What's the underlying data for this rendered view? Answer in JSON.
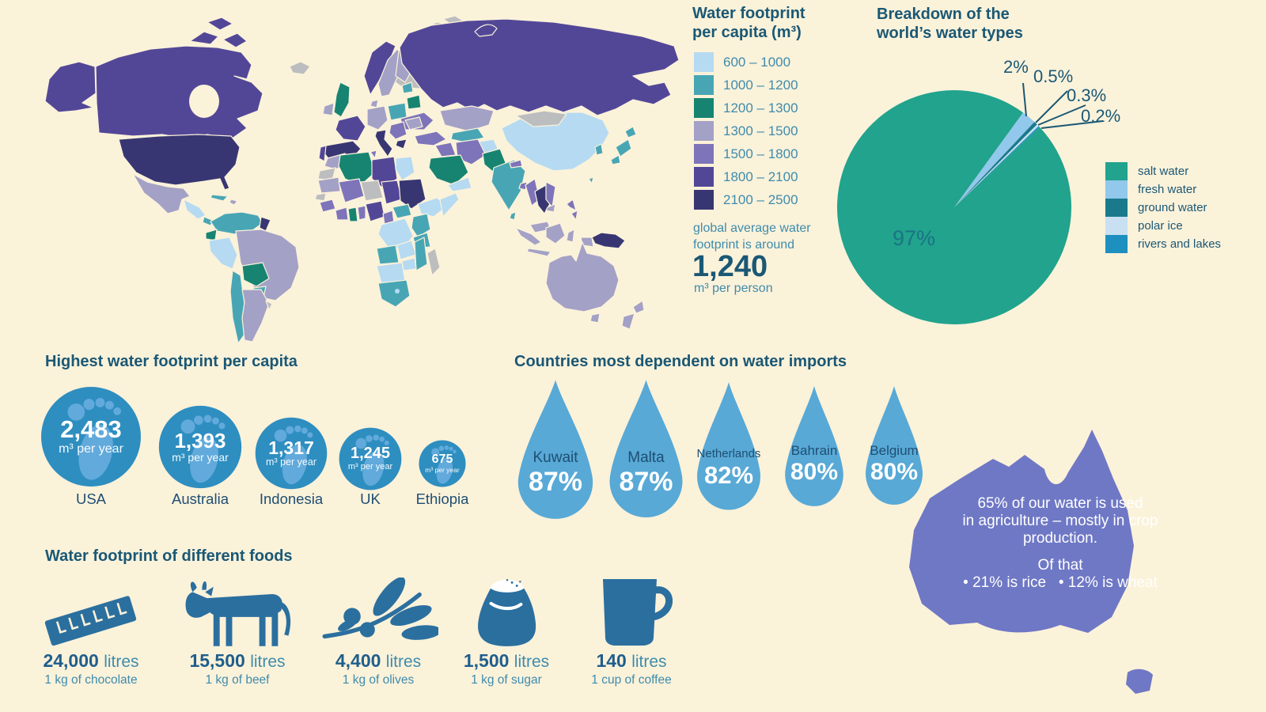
{
  "palette": {
    "background": "#FBF2DA",
    "heading": "#1A5875",
    "teal_label": "#3E8CAD",
    "navy_label": "#1F4E73",
    "band_600_1000": "#B5DAF2",
    "band_1000_1200": "#48A6B4",
    "band_1200_1300": "#178471",
    "band_1300_1500": "#A3A1C6",
    "band_1500_1800": "#7D74BA",
    "band_1800_2100": "#524797",
    "band_2100_2500": "#383672",
    "no_data_gray": "#BCBDBE",
    "pie_salt": "#21A38D",
    "pie_fresh": "#92C8EC",
    "pie_ground": "#1A7A8C",
    "pie_polar": "#C9E0F2",
    "pie_rivers": "#1D90C0",
    "pie_97_label": "#1B7384",
    "circle_blue": "#2E8EC0",
    "footprint_light": "#62AADC",
    "drop_blue": "#58A9D6",
    "food_blue": "#2B6F9F",
    "food_number": "#1F5E8C",
    "australia_purple": "#6F78C5",
    "white": "#FFFFFF"
  },
  "map_legend": {
    "title_line1": "Water footprint",
    "title_line2": "per capita (m³)",
    "bands": [
      {
        "range": "600 – 1000"
      },
      {
        "range": "1000 – 1200"
      },
      {
        "range": "1200 – 1300"
      },
      {
        "range": "1300 – 1500"
      },
      {
        "range": "1500 – 1800"
      },
      {
        "range": "1800 – 2100"
      },
      {
        "range": "2100 – 2500"
      }
    ],
    "note_line1": "global average water",
    "note_line2": "footprint is around",
    "average_value": "1,240",
    "average_unit": "m³ per person"
  },
  "pie": {
    "title_line1": "Breakdown of the",
    "title_line2": "world’s water types",
    "labels": {
      "salt": "97%",
      "fresh": "2%",
      "ground": "0.5%",
      "polar": "0.3%",
      "rivers": "0.2%"
    },
    "legend": [
      "salt water",
      "fresh water",
      "ground water",
      "polar ice",
      "rivers and lakes"
    ]
  },
  "footprints": {
    "heading": "Highest water footprint per capita",
    "items": [
      {
        "country": "USA",
        "value": "2,483",
        "unit": "m³ per year"
      },
      {
        "country": "Australia",
        "value": "1,393",
        "unit": "m³ per year"
      },
      {
        "country": "Indonesia",
        "value": "1,317",
        "unit": "m³ per year"
      },
      {
        "country": "UK",
        "value": "1,245",
        "unit": "m³ per year"
      },
      {
        "country": "Ethiopia",
        "value": "675",
        "unit": "m³ per year"
      }
    ]
  },
  "imports": {
    "heading": "Countries most dependent on water imports",
    "items": [
      {
        "country": "Kuwait",
        "pct": "87%"
      },
      {
        "country": "Malta",
        "pct": "87%"
      },
      {
        "country": "Netherlands",
        "pct": "82%"
      },
      {
        "country": "Bahrain",
        "pct": "80%"
      },
      {
        "country": "Belgium",
        "pct": "80%"
      }
    ]
  },
  "australia_callout": {
    "line1": "65% of our water is used",
    "line2": "in agriculture – mostly in crop",
    "line3": "production.",
    "line4": "Of that",
    "bullet_rice": "• 21% is rice",
    "bullet_wheat": "• 12% is wheat"
  },
  "foods": {
    "heading": "Water footprint of different foods",
    "items": [
      {
        "value": "24,000",
        "unit": "litres",
        "caption": "1 kg of chocolate",
        "icon": "chocolate-bar-icon"
      },
      {
        "value": "15,500",
        "unit": "litres",
        "caption": "1 kg of beef",
        "icon": "cow-icon"
      },
      {
        "value": "4,400",
        "unit": "litres",
        "caption": "1 kg of olives",
        "icon": "olive-branch-icon"
      },
      {
        "value": "1,500",
        "unit": "litres",
        "caption": "1 kg of sugar",
        "icon": "sugar-sack-icon"
      },
      {
        "value": "140",
        "unit": "litres",
        "caption": "1 cup of coffee",
        "icon": "coffee-mug-icon"
      }
    ]
  },
  "chart_data": [
    {
      "type": "heatmap",
      "subtype": "choropleth-world-map",
      "title": "Water footprint per capita (m³)",
      "legend_bands": [
        {
          "range": "600 – 1000",
          "color": "#B5DAF2"
        },
        {
          "range": "1000 – 1200",
          "color": "#48A6B4"
        },
        {
          "range": "1200 – 1300",
          "color": "#178471"
        },
        {
          "range": "1300 – 1500",
          "color": "#A3A1C6"
        },
        {
          "range": "1500 – 1800",
          "color": "#7D74BA"
        },
        {
          "range": "1800 – 2100",
          "color": "#524797"
        },
        {
          "range": "2100 – 2500",
          "color": "#383672"
        }
      ],
      "no_data_color": "#BCBDBE",
      "annotation": "global average water footprint is around 1,240 m³ per person",
      "readable_examples": {
        "USA": "2100 – 2500",
        "Canada": "1800 – 2100",
        "Russia": "1800 – 2100",
        "Greenland": "no data",
        "Mongolia": "no data",
        "China": "600 – 1000",
        "India": "1000 – 1200",
        "UK": "1200 – 1300",
        "Spain": "2100 – 2500",
        "Brazil": "1300 – 1500",
        "Australia": "1300 – 1500",
        "Thailand": "2100 – 2500"
      }
    },
    {
      "type": "pie",
      "title": "Breakdown of the world's water types",
      "slices": [
        {
          "label": "salt water",
          "value": 97,
          "display": "97%",
          "color": "#21A38D"
        },
        {
          "label": "fresh water",
          "value": 2,
          "display": "2%",
          "color": "#92C8EC"
        },
        {
          "label": "ground water",
          "value": 0.5,
          "display": "0.5%",
          "color": "#1A7A8C"
        },
        {
          "label": "polar ice",
          "value": 0.3,
          "display": "0.3%",
          "color": "#C9E0F2"
        },
        {
          "label": "rivers and lakes",
          "value": 0.2,
          "display": "0.2%",
          "color": "#1D90C0"
        }
      ],
      "legend_position": "right"
    },
    {
      "type": "bar",
      "note": "rendered as proportional footprint circles",
      "title": "Highest water footprint per capita",
      "categories": [
        "USA",
        "Australia",
        "Indonesia",
        "UK",
        "Ethiopia"
      ],
      "values": [
        2483,
        1393,
        1317,
        1245,
        675
      ],
      "ylabel": "m³ per year"
    },
    {
      "type": "bar",
      "note": "rendered as water drop pictograms",
      "title": "Countries most dependent on water imports",
      "categories": [
        "Kuwait",
        "Malta",
        "Netherlands",
        "Bahrain",
        "Belgium"
      ],
      "values": [
        87,
        87,
        82,
        80,
        80
      ],
      "ylabel": "% dependent on imports"
    },
    {
      "type": "bar",
      "note": "rendered as food icon pictograms",
      "title": "Water footprint of different foods",
      "categories": [
        "1 kg of chocolate",
        "1 kg of beef",
        "1 kg of olives",
        "1 kg of sugar",
        "1 cup of coffee"
      ],
      "values": [
        24000,
        15500,
        4400,
        1500,
        140
      ],
      "ylabel": "litres"
    },
    {
      "type": "table",
      "note": "Australia callout facts",
      "title": "65% of our water is used in agriculture – mostly in crop production.",
      "rows": [
        [
          "rice",
          "21%"
        ],
        [
          "wheat",
          "12%"
        ]
      ]
    }
  ]
}
